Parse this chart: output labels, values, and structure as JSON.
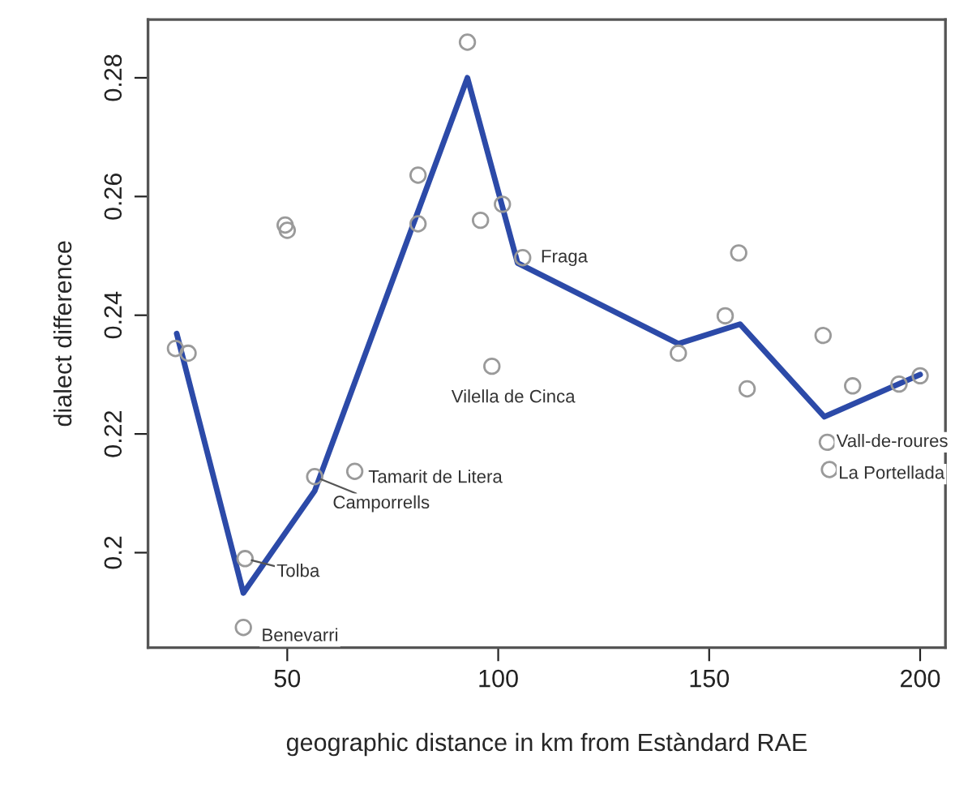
{
  "chart_data": {
    "type": "scatter",
    "xlabel": "geographic distance in km from Estàndard RAE",
    "ylabel": "dialect difference",
    "xlim": [
      17,
      206
    ],
    "ylim": [
      0.184,
      0.2898
    ],
    "xticks": [
      50,
      100,
      150,
      200
    ],
    "yticks": [
      0.2,
      0.22,
      0.24,
      0.26,
      0.28
    ],
    "grid": false,
    "legend": false,
    "series": [
      {
        "color": "#9a9a9a",
        "marker": "circle",
        "x": [
          23.5,
          26.5,
          40,
          39.6,
          49.5,
          50,
          56.5,
          66,
          81,
          81,
          92.7,
          95.8,
          101,
          98.5,
          105.8,
          142.7,
          153.8,
          157,
          159,
          177,
          178,
          178.5,
          184,
          195,
          200
        ],
        "values": [
          0.2344,
          0.2336,
          0.199,
          0.1874,
          0.2552,
          0.2543,
          0.2128,
          0.2137,
          0.2636,
          0.2554,
          0.286,
          0.256,
          0.2587,
          0.2314,
          0.2497,
          0.2336,
          0.2399,
          0.2505,
          0.2276,
          0.2366,
          0.2186,
          0.214,
          0.2281,
          0.2284,
          0.2298
        ]
      },
      {
        "type": "line",
        "color": "#2c4aa8",
        "marker": "none",
        "line_style": "solid",
        "x": [
          23.8,
          39.6,
          56.5,
          92.7,
          104.6,
          142.7,
          157.3,
          177.3,
          200
        ],
        "values": [
          0.2369,
          0.1932,
          0.2104,
          0.28,
          0.2488,
          0.2352,
          0.2385,
          0.2229,
          0.23
        ]
      }
    ],
    "annotations": [
      {
        "text": "Tolba",
        "x": 40,
        "y": 0.199
      },
      {
        "text": "Benevarri",
        "x": 39.6,
        "y": 0.1874
      },
      {
        "text": "Camporrells",
        "x": 56.5,
        "y": 0.2128
      },
      {
        "text": "Tamarit de Litera",
        "x": 66,
        "y": 0.2137
      },
      {
        "text": "Vilella de Cinca",
        "x": 98.5,
        "y": 0.2314
      },
      {
        "text": "Fraga",
        "x": 105.8,
        "y": 0.2497
      },
      {
        "text": "Vall-de-roures",
        "x": 178,
        "y": 0.2186
      },
      {
        "text": "La Portellada",
        "x": 178.5,
        "y": 0.214
      }
    ]
  }
}
